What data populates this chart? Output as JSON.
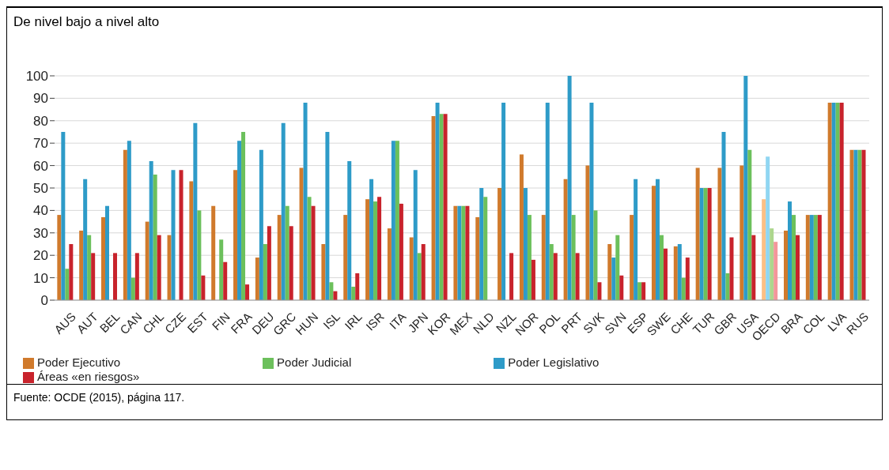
{
  "chart_data": {
    "type": "bar",
    "title": "De nivel bajo a nivel alto",
    "categories": [
      "AUS",
      "AUT",
      "BEL",
      "CAN",
      "CHL",
      "CZE",
      "EST",
      "FIN",
      "FRA",
      "DEU",
      "GRC",
      "HUN",
      "ISL",
      "IRL",
      "ISR",
      "ITA",
      "JPN",
      "KOR",
      "MEX",
      "NLD",
      "NZL",
      "NOR",
      "POL",
      "PRT",
      "SVK",
      "SVN",
      "ESP",
      "SWE",
      "CHE",
      "TUR",
      "GBR",
      "USA",
      "OECD",
      "BRA",
      "COL",
      "LVA",
      "RUS"
    ],
    "series": [
      {
        "name": "Poder Ejecutivo",
        "color": "#d07a2c",
        "colors": [
          "#d07a2c",
          "#d07a2c",
          "#d07a2c",
          "#d07a2c",
          "#d07a2c",
          "#d07a2c",
          "#d07a2c",
          "#d07a2c",
          "#d07a2c",
          "#d07a2c",
          "#d07a2c",
          "#d07a2c",
          "#d07a2c",
          "#d07a2c",
          "#d07a2c",
          "#d07a2c",
          "#d07a2c",
          "#d07a2c",
          "#d07a2c",
          "#d07a2c",
          "#d07a2c",
          "#d07a2c",
          "#d07a2c",
          "#d07a2c",
          "#d07a2c",
          "#d07a2c",
          "#d07a2c",
          "#d07a2c",
          "#d07a2c",
          "#d07a2c",
          "#d07a2c",
          "#d07a2c",
          "#fbbf85",
          "#d07a2c",
          "#d07a2c",
          "#d07a2c",
          "#d07a2c"
        ],
        "values": [
          38,
          31,
          37,
          67,
          35,
          29,
          53,
          42,
          58,
          19,
          38,
          59,
          25,
          38,
          45,
          32,
          28,
          82,
          42,
          37,
          50,
          65,
          38,
          54,
          60,
          25,
          38,
          51,
          24,
          59,
          59,
          60,
          45,
          31,
          38,
          88,
          67
        ]
      },
      {
        "name": "Poder Legislativo",
        "color": "#2e9bc8",
        "colors": [
          "#2e9bc8",
          "#2e9bc8",
          "#2e9bc8",
          "#2e9bc8",
          "#2e9bc8",
          "#2e9bc8",
          "#2e9bc8",
          "#2e9bc8",
          "#2e9bc8",
          "#2e9bc8",
          "#2e9bc8",
          "#2e9bc8",
          "#2e9bc8",
          "#2e9bc8",
          "#2e9bc8",
          "#2e9bc8",
          "#2e9bc8",
          "#2e9bc8",
          "#2e9bc8",
          "#2e9bc8",
          "#2e9bc8",
          "#2e9bc8",
          "#2e9bc8",
          "#2e9bc8",
          "#2e9bc8",
          "#2e9bc8",
          "#2e9bc8",
          "#2e9bc8",
          "#2e9bc8",
          "#2e9bc8",
          "#2e9bc8",
          "#2e9bc8",
          "#90d6f2",
          "#2e9bc8",
          "#2e9bc8",
          "#2e9bc8",
          "#2e9bc8"
        ],
        "values": [
          75,
          54,
          42,
          71,
          62,
          58,
          79,
          null,
          71,
          67,
          79,
          88,
          75,
          62,
          54,
          71,
          58,
          88,
          42,
          50,
          88,
          50,
          88,
          100,
          88,
          19,
          54,
          54,
          25,
          50,
          75,
          100,
          64,
          44,
          38,
          88,
          67
        ]
      },
      {
        "name": "Poder Judicial",
        "color": "#6cc05c",
        "colors": [
          "#6cc05c",
          "#6cc05c",
          "#6cc05c",
          "#6cc05c",
          "#6cc05c",
          "#6cc05c",
          "#6cc05c",
          "#6cc05c",
          "#6cc05c",
          "#6cc05c",
          "#6cc05c",
          "#6cc05c",
          "#6cc05c",
          "#6cc05c",
          "#6cc05c",
          "#6cc05c",
          "#6cc05c",
          "#6cc05c",
          "#6cc05c",
          "#6cc05c",
          "#6cc05c",
          "#6cc05c",
          "#6cc05c",
          "#6cc05c",
          "#6cc05c",
          "#6cc05c",
          "#6cc05c",
          "#6cc05c",
          "#6cc05c",
          "#6cc05c",
          "#6cc05c",
          "#6cc05c",
          "#acd68e",
          "#6cc05c",
          "#6cc05c",
          "#6cc05c",
          "#6cc05c"
        ],
        "values": [
          14,
          29,
          null,
          10,
          56,
          null,
          40,
          27,
          75,
          25,
          42,
          46,
          8,
          6,
          44,
          71,
          21,
          83,
          42,
          46,
          null,
          38,
          25,
          38,
          40,
          29,
          8,
          29,
          10,
          50,
          12,
          67,
          32,
          38,
          38,
          88,
          67
        ]
      },
      {
        "name": "Áreas «en riesgos»",
        "color": "#c8232c",
        "colors": [
          "#c8232c",
          "#c8232c",
          "#c8232c",
          "#c8232c",
          "#c8232c",
          "#c8232c",
          "#c8232c",
          "#c8232c",
          "#c8232c",
          "#c8232c",
          "#c8232c",
          "#c8232c",
          "#c8232c",
          "#c8232c",
          "#c8232c",
          "#c8232c",
          "#c8232c",
          "#c8232c",
          "#c8232c",
          "#c8232c",
          "#c8232c",
          "#c8232c",
          "#c8232c",
          "#c8232c",
          "#c8232c",
          "#c8232c",
          "#c8232c",
          "#c8232c",
          "#c8232c",
          "#c8232c",
          "#c8232c",
          "#c8232c",
          "#f3979b",
          "#c8232c",
          "#c8232c",
          "#c8232c",
          "#c8232c"
        ],
        "values": [
          25,
          21,
          21,
          21,
          29,
          58,
          11,
          17,
          7,
          33,
          33,
          42,
          4,
          12,
          46,
          43,
          25,
          83,
          42,
          null,
          21,
          18,
          21,
          21,
          8,
          11,
          8,
          23,
          19,
          50,
          28,
          29,
          26,
          29,
          38,
          88,
          67
        ]
      }
    ],
    "ylim": [
      0,
      100
    ],
    "yticks": [
      0,
      10,
      20,
      30,
      40,
      50,
      60,
      70,
      80,
      90,
      100
    ],
    "grid": "y",
    "legend": "bottom",
    "annotations": [
      "Fuente: OCDE (2015), página 117."
    ]
  }
}
